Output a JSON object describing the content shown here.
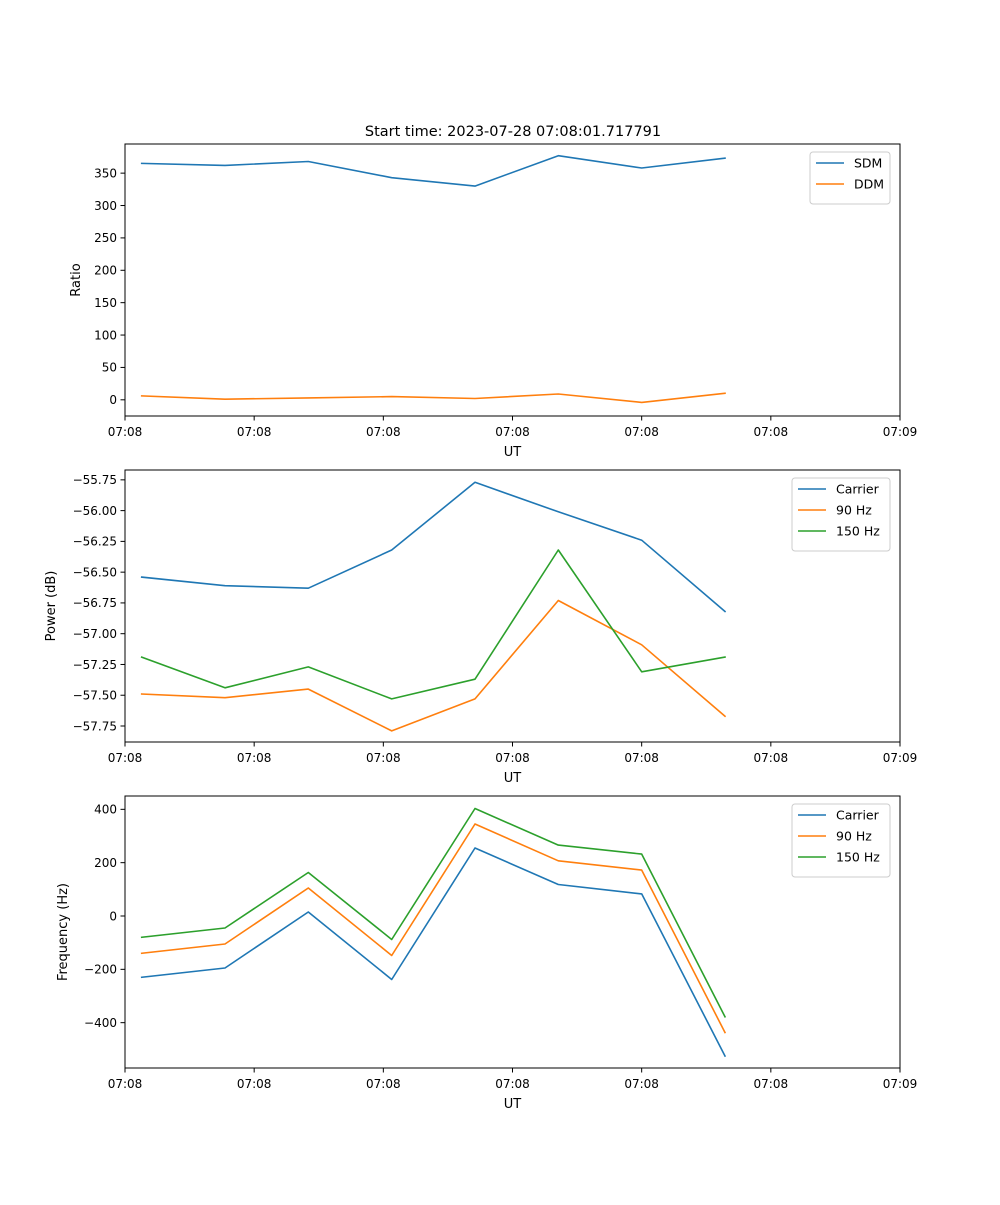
{
  "figure": {
    "title": "Start time: 2023-07-28 07:08:01.717791"
  },
  "colors": {
    "blue": "#1f77b4",
    "orange": "#ff7f0e",
    "green": "#2ca02c"
  },
  "chart_data": [
    {
      "id": "ratio",
      "type": "line",
      "title": "Start time: 2023-07-28 07:08:01.717791",
      "xlabel": "UT",
      "ylabel": "Ratio",
      "x": [
        1,
        2,
        3,
        4,
        5,
        6,
        7,
        8
      ],
      "xlim": [
        0.8,
        10.1
      ],
      "x_ticks": [
        0.8,
        2.35,
        3.9,
        5.45,
        7.0,
        8.55,
        10.1
      ],
      "x_tick_labels": [
        "07:08",
        "07:08",
        "07:08",
        "07:08",
        "07:08",
        "07:08",
        "07:09"
      ],
      "ylim": [
        -25,
        395
      ],
      "y_ticks": [
        0,
        50,
        100,
        150,
        200,
        250,
        300,
        350
      ],
      "y_tick_labels": [
        "0",
        "50",
        "100",
        "150",
        "200",
        "250",
        "300",
        "350"
      ],
      "legend_position": "top-right",
      "series": [
        {
          "name": "SDM",
          "color": "#1f77b4",
          "values": [
            365,
            362,
            368,
            343,
            330,
            377,
            358,
            373
          ]
        },
        {
          "name": "DDM",
          "color": "#ff7f0e",
          "values": [
            6,
            1,
            3,
            5,
            2,
            9,
            -4,
            10
          ]
        }
      ]
    },
    {
      "id": "power",
      "type": "line",
      "xlabel": "UT",
      "ylabel": "Power (dB)",
      "x": [
        1,
        2,
        3,
        4,
        5,
        6,
        7,
        8
      ],
      "xlim": [
        0.8,
        10.1
      ],
      "x_ticks": [
        0.8,
        2.35,
        3.9,
        5.45,
        7.0,
        8.55,
        10.1
      ],
      "x_tick_labels": [
        "07:08",
        "07:08",
        "07:08",
        "07:08",
        "07:08",
        "07:08",
        "07:09"
      ],
      "ylim": [
        -57.88,
        -55.67
      ],
      "y_ticks": [
        -57.75,
        -57.5,
        -57.25,
        -57.0,
        -56.75,
        -56.5,
        -56.25,
        -56.0,
        -55.75
      ],
      "y_tick_labels": [
        "−57.75",
        "−57.50",
        "−57.25",
        "−57.00",
        "−56.75",
        "−56.50",
        "−56.25",
        "−56.00",
        "−55.75"
      ],
      "legend_position": "top-right",
      "series": [
        {
          "name": "Carrier",
          "color": "#1f77b4",
          "values": [
            -56.54,
            -56.61,
            -56.63,
            -56.32,
            -55.77,
            -56.01,
            -56.24,
            -56.82
          ]
        },
        {
          "name": "90 Hz",
          "color": "#ff7f0e",
          "values": [
            -57.49,
            -57.52,
            -57.45,
            -57.79,
            -57.53,
            -56.73,
            -57.09,
            -57.67
          ]
        },
        {
          "name": "150 Hz",
          "color": "#2ca02c",
          "values": [
            -57.19,
            -57.44,
            -57.27,
            -57.53,
            -57.37,
            -56.32,
            -57.31,
            -57.19
          ]
        }
      ]
    },
    {
      "id": "frequency",
      "type": "line",
      "xlabel": "UT",
      "ylabel": "Frequency (Hz)",
      "x": [
        1,
        2,
        3,
        4,
        5,
        6,
        7,
        8
      ],
      "xlim": [
        0.8,
        10.1
      ],
      "x_ticks": [
        0.8,
        2.35,
        3.9,
        5.45,
        7.0,
        8.55,
        10.1
      ],
      "x_tick_labels": [
        "07:08",
        "07:08",
        "07:08",
        "07:08",
        "07:08",
        "07:08",
        "07:09"
      ],
      "ylim": [
        -570,
        450
      ],
      "y_ticks": [
        -400,
        -200,
        0,
        200,
        400
      ],
      "y_tick_labels": [
        "−400",
        "−200",
        "0",
        "200",
        "400"
      ],
      "legend_position": "top-right",
      "series": [
        {
          "name": "Carrier",
          "color": "#1f77b4",
          "values": [
            -230,
            -195,
            15,
            -238,
            255,
            118,
            83,
            -525
          ]
        },
        {
          "name": "90 Hz",
          "color": "#ff7f0e",
          "values": [
            -140,
            -105,
            105,
            -148,
            345,
            207,
            172,
            -437
          ]
        },
        {
          "name": "150 Hz",
          "color": "#2ca02c",
          "values": [
            -80,
            -45,
            163,
            -88,
            403,
            266,
            232,
            -378
          ]
        }
      ]
    }
  ]
}
